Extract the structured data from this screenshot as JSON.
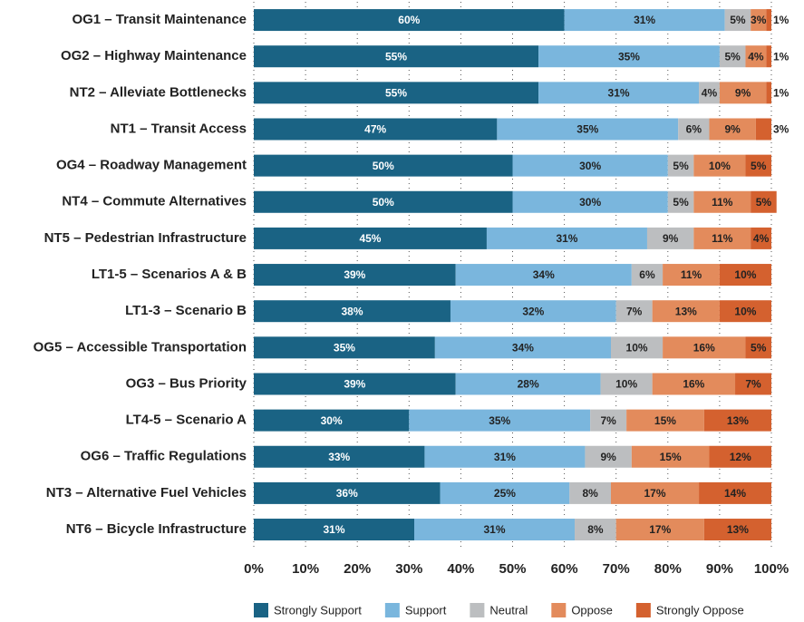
{
  "chart_data": {
    "type": "stacked_bar_horizontal",
    "categories": [
      "OG1 – Transit Maintenance",
      "OG2 – Highway Maintenance",
      "NT2 – Alleviate Bottlenecks",
      "NT1 – Transit Access",
      "OG4 – Roadway Management",
      "NT4 – Commute Alternatives",
      "NT5 – Pedestrian Infrastructure",
      "LT1-5 – Scenarios A & B",
      "LT1-3 – Scenario B",
      "OG5 – Accessible Transportation",
      "OG3 – Bus Priority",
      "LT4-5 – Scenario A",
      "OG6 – Traffic Regulations",
      "NT3 – Alternative Fuel Vehicles",
      "NT6 – Bicycle Infrastructure"
    ],
    "series": [
      {
        "name": "Strongly Support",
        "color": "#1a6384",
        "values": [
          60,
          55,
          55,
          47,
          50,
          50,
          45,
          39,
          38,
          35,
          39,
          30,
          33,
          36,
          31
        ],
        "value_labels": [
          "60%",
          "55%",
          "55%",
          "47%",
          "50%",
          "50%",
          "45%",
          "39%",
          "38%",
          "35%",
          "39%",
          "30%",
          "33%",
          "36%",
          "31%"
        ]
      },
      {
        "name": "Support",
        "color": "#7ab6dd",
        "values": [
          31,
          35,
          31,
          35,
          30,
          30,
          31,
          34,
          32,
          34,
          28,
          35,
          31,
          25,
          31
        ],
        "value_labels": [
          "31%",
          "35%",
          "31%",
          "35%",
          "30%",
          "30%",
          "31%",
          "34%",
          "32%",
          "34%",
          "28%",
          "35%",
          "31%",
          "25%",
          "31%"
        ]
      },
      {
        "name": "Neutral",
        "color": "#bcbec0",
        "values": [
          5,
          5,
          4,
          6,
          5,
          5,
          9,
          6,
          7,
          10,
          10,
          7,
          9,
          8,
          8
        ],
        "value_labels": [
          "5%",
          "5%",
          "4%",
          "6%",
          "5%",
          "5%",
          "9%",
          "6%",
          "7%",
          "10%",
          "10%",
          "7%",
          "9%",
          "8%",
          "8%"
        ]
      },
      {
        "name": "Oppose",
        "color": "#e38b5c",
        "values": [
          3,
          4,
          9,
          9,
          10,
          11,
          11,
          11,
          13,
          16,
          16,
          15,
          15,
          17,
          17
        ],
        "value_labels": [
          "3%",
          "4%",
          "9%",
          "9%",
          "10%",
          "11%",
          "11%",
          "11%",
          "13%",
          "16%",
          "16%",
          "15%",
          "15%",
          "17%",
          "17%"
        ]
      },
      {
        "name": "Strongly Oppose",
        "color": "#d4612f",
        "values": [
          1,
          1,
          1,
          3,
          5,
          5,
          4,
          10,
          10,
          5,
          7,
          13,
          12,
          14,
          13
        ],
        "value_labels": [
          "1%",
          "1%",
          "1%",
          "3%",
          "5%",
          "5%",
          "4%",
          "10%",
          "10%",
          "5%",
          "7%",
          "13%",
          "12%",
          "14%",
          "13%"
        ]
      }
    ],
    "xlim": [
      0,
      100
    ],
    "xticks": [
      {
        "value": 0,
        "label": "0%"
      },
      {
        "value": 10,
        "label": "10%"
      },
      {
        "value": 20,
        "label": "20%"
      },
      {
        "value": 30,
        "label": "30%"
      },
      {
        "value": 40,
        "label": "40%"
      },
      {
        "value": 50,
        "label": "50%"
      },
      {
        "value": 60,
        "label": "60%"
      },
      {
        "value": 70,
        "label": "70%"
      },
      {
        "value": 80,
        "label": "80%"
      },
      {
        "value": 90,
        "label": "90%"
      },
      {
        "value": 100,
        "label": "100%"
      }
    ],
    "grid": true,
    "legend": "bottom"
  }
}
